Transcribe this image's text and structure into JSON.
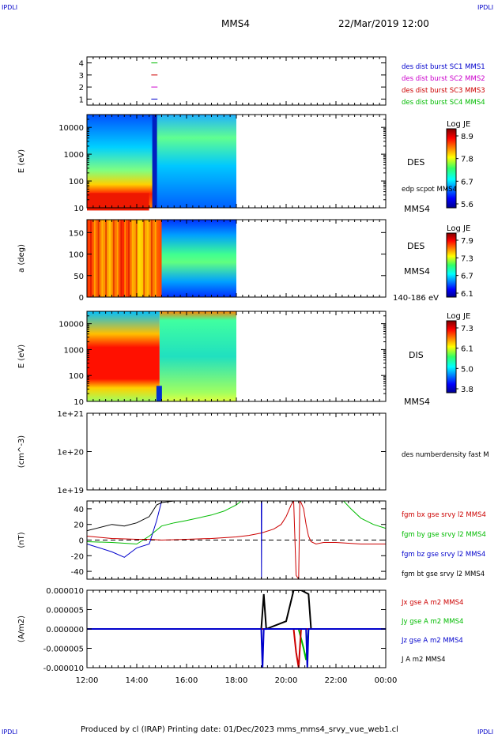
{
  "page": {
    "corner_labels": [
      "IPDLI",
      "IPDLI",
      "IPDLI",
      "IPDLI"
    ],
    "spacecraft": "MMS4",
    "datetime": "22/Mar/2019 12:00",
    "footer": "Produced by cl (IRAP)   Printing date: 01/Dec/2023   mms_mms4_srvy_vue_web1.cl"
  },
  "colors": {
    "mms1": "#0000cc",
    "mms2": "#cc00cc",
    "mms3": "#cc0000",
    "mms4": "#00bb00",
    "bx": "#cc0000",
    "by": "#00bb00",
    "bz": "#0000cc",
    "bt": "#000000"
  },
  "chart_data": [
    {
      "type": "line",
      "title": "",
      "ylabel": "",
      "yticks": [
        "1",
        "2",
        "3",
        "4"
      ],
      "ylim": [
        0.5,
        4.5
      ],
      "legend": [
        "des dist burst SC1 MMS1",
        "des dist burst SC2 MMS2",
        "des dist burst SC3 MMS3",
        "des dist burst SC4 MMS4"
      ],
      "series": [
        {
          "name": "des dist burst SC1 MMS1",
          "y": 1,
          "x_start": "14:35",
          "x_end": "14:50"
        },
        {
          "name": "des dist burst SC2 MMS2",
          "y": 2,
          "x_start": "14:35",
          "x_end": "14:50"
        },
        {
          "name": "des dist burst SC3 MMS3",
          "y": 3,
          "x_start": "14:35",
          "x_end": "14:50"
        },
        {
          "name": "des dist burst SC4 MMS4",
          "y": 4,
          "x_start": "14:35",
          "x_end": "14:50"
        }
      ]
    },
    {
      "type": "heatmap",
      "ylabel": "E (eV)",
      "yscale": "log",
      "yticks": [
        "10",
        "100",
        "1000",
        "10000"
      ],
      "ylim": [
        10,
        30000
      ],
      "instrument": "DES",
      "side_note": "edp scpot MMS4",
      "sc_label": "MMS4",
      "colorbar": {
        "label": "Log JE",
        "ticks": [
          "8.9",
          "7.8",
          "6.7",
          "5.6"
        ],
        "range": [
          5.6,
          8.9
        ]
      },
      "data_end": "18:00",
      "transition": "14:45"
    },
    {
      "type": "heatmap",
      "ylabel": "a (deg)",
      "yticks": [
        "0",
        "50",
        "100",
        "150"
      ],
      "ylim": [
        0,
        180
      ],
      "instrument": "DES",
      "sc_label": "MMS4",
      "energy_range": "140-186 eV",
      "colorbar": {
        "label": "Log JE",
        "ticks": [
          "7.9",
          "7.3",
          "6.7",
          "6.1"
        ],
        "range": [
          6.1,
          7.9
        ]
      },
      "data_end": "18:00",
      "transition": "15:00"
    },
    {
      "type": "heatmap",
      "ylabel": "E (eV)",
      "yscale": "log",
      "yticks": [
        "10",
        "100",
        "1000",
        "10000"
      ],
      "ylim": [
        10,
        30000
      ],
      "instrument": "DIS",
      "sc_label": "MMS4",
      "colorbar": {
        "label": "Log JE",
        "ticks": [
          "7.3",
          "6.1",
          "5.0",
          "3.8"
        ],
        "range": [
          3.8,
          7.3
        ]
      },
      "data_end": "18:00",
      "transition": "14:55"
    },
    {
      "type": "line",
      "ylabel": "(cm^-3)",
      "yscale": "log",
      "yticks": [
        "1e+19",
        "1e+20",
        "1e+21"
      ],
      "ylim": [
        1e+19,
        1e+21
      ],
      "legend": [
        "des numberdensity fast M"
      ],
      "series": []
    },
    {
      "type": "line",
      "ylabel": "(nT)",
      "yticks": [
        "-40",
        "-20",
        "0",
        "20",
        "40"
      ],
      "ylim": [
        -50,
        50
      ],
      "legend": [
        "fgm bx gse srvy l2 MMS4",
        "fgm by gse srvy l2 MMS4",
        "fgm bz gse srvy l2 MMS4",
        "fgm bt gse srvy l2 MMS4"
      ],
      "series": [
        {
          "name": "fgm bx gse srvy l2 MMS4",
          "x": [
            12.0,
            13.0,
            14.0,
            14.5,
            15.0,
            16.0,
            17.0,
            18.0,
            18.5,
            19.0,
            19.5,
            19.8,
            20.0,
            20.2,
            20.3,
            20.4,
            20.5,
            20.55,
            20.6,
            20.7,
            20.8,
            20.9,
            21.0,
            21.2,
            21.5,
            22.0,
            22.5,
            23.0,
            24.0
          ],
          "y": [
            5,
            2,
            1,
            1,
            0,
            1,
            2,
            4,
            6,
            9,
            14,
            20,
            30,
            45,
            50,
            -45,
            -50,
            50,
            48,
            40,
            20,
            5,
            -2,
            -5,
            -3,
            -3,
            -4,
            -5,
            -5
          ]
        },
        {
          "name": "fgm by gse srvy l2 MMS4",
          "x": [
            12.0,
            13.0,
            14.0,
            14.5,
            15.0,
            15.5,
            16.0,
            17.0,
            17.5,
            18.0,
            18.2,
            22.3,
            22.6,
            23.0,
            23.5,
            24.0
          ],
          "y": [
            -2,
            -3,
            -5,
            5,
            18,
            22,
            25,
            32,
            37,
            45,
            50,
            50,
            40,
            28,
            20,
            15
          ]
        },
        {
          "name": "fgm bz gse srvy l2 MMS4",
          "x": [
            12.0,
            12.5,
            13.0,
            13.5,
            14.0,
            14.5,
            14.8,
            15.0,
            19.0,
            19.01,
            19.02,
            20.5,
            20.55,
            21.0,
            24.0
          ],
          "y": [
            -5,
            -10,
            -15,
            -22,
            -10,
            -5,
            25,
            50,
            50,
            -50,
            50,
            50,
            50,
            50,
            50
          ]
        },
        {
          "name": "fgm bt gse srvy l2 MMS4",
          "x": [
            12.0,
            12.5,
            13.0,
            13.5,
            14.0,
            14.5,
            14.8,
            15.0,
            15.5,
            16.0
          ],
          "y": [
            12,
            16,
            20,
            18,
            22,
            30,
            45,
            48,
            50,
            50
          ]
        }
      ],
      "reference_line": 0
    },
    {
      "type": "line",
      "ylabel": "(A/m2)",
      "yticks": [
        "-0.000010",
        "-0.000005",
        "0.000000",
        "0.000005",
        "0.000010"
      ],
      "ylim": [
        -1e-05,
        1e-05
      ],
      "legend": [
        "Jx gse A m2 MMS4",
        "Jy gse A m2 MMS4",
        "Jz gse A m2 MMS4",
        "J A m2 MMS4"
      ],
      "series": [
        {
          "name": "Jx gse A m2 MMS4",
          "x": [
            12.0,
            20.3,
            20.4,
            20.5,
            20.6,
            24.0
          ],
          "y": [
            0,
            0,
            -6e-06,
            -1e-05,
            0,
            0
          ]
        },
        {
          "name": "Jy gse A m2 MMS4",
          "x": [
            12.0,
            20.5,
            20.7,
            20.8,
            20.9,
            24.0
          ],
          "y": [
            0,
            0,
            -5e-06,
            -8e-06,
            0,
            0
          ]
        },
        {
          "name": "Jz gse A m2 MMS4",
          "x": [
            12.0,
            19.0,
            19.05,
            19.1,
            20.8,
            20.85,
            20.9,
            24.0
          ],
          "y": [
            0,
            0,
            -1e-05,
            0,
            0,
            -1e-05,
            0,
            0
          ]
        },
        {
          "name": "J A m2 MMS4",
          "x": [
            12.0,
            19.0,
            19.1,
            19.2,
            20.0,
            20.3,
            20.6,
            20.9,
            21.0,
            24.0
          ],
          "y": [
            0,
            0,
            9e-06,
            0,
            2e-06,
            1e-05,
            1e-05,
            9e-06,
            0,
            0
          ]
        }
      ]
    }
  ],
  "xaxis": {
    "ticks": [
      "12:00",
      "14:00",
      "16:00",
      "18:00",
      "20:00",
      "22:00",
      "00:00"
    ],
    "range": [
      12,
      24
    ]
  }
}
